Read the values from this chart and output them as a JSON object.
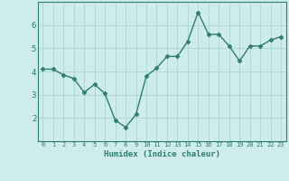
{
  "x": [
    0,
    1,
    2,
    3,
    4,
    5,
    6,
    7,
    8,
    9,
    10,
    11,
    12,
    13,
    14,
    15,
    16,
    17,
    18,
    19,
    20,
    21,
    22,
    23
  ],
  "y": [
    4.1,
    4.1,
    3.85,
    3.7,
    3.1,
    3.45,
    3.05,
    1.9,
    1.6,
    2.15,
    3.8,
    4.15,
    4.65,
    4.65,
    5.3,
    6.55,
    5.6,
    5.6,
    5.1,
    4.45,
    5.1,
    5.1,
    5.35,
    5.5
  ],
  "line_color": "#2e7d6e",
  "marker": "D",
  "marker_size": 2.5,
  "xlabel": "Humidex (Indice chaleur)",
  "ylim": [
    1.0,
    7.0
  ],
  "xlim": [
    -0.5,
    23.5
  ],
  "yticks": [
    2,
    3,
    4,
    5,
    6
  ],
  "xticks": [
    0,
    1,
    2,
    3,
    4,
    5,
    6,
    7,
    8,
    9,
    10,
    11,
    12,
    13,
    14,
    15,
    16,
    17,
    18,
    19,
    20,
    21,
    22,
    23
  ],
  "bg_color": "#ceecea",
  "grid_color": "#b0d8d5",
  "tick_color": "#2e7d6e",
  "label_color": "#2e7d6e",
  "spine_color": "#2e7d6e"
}
